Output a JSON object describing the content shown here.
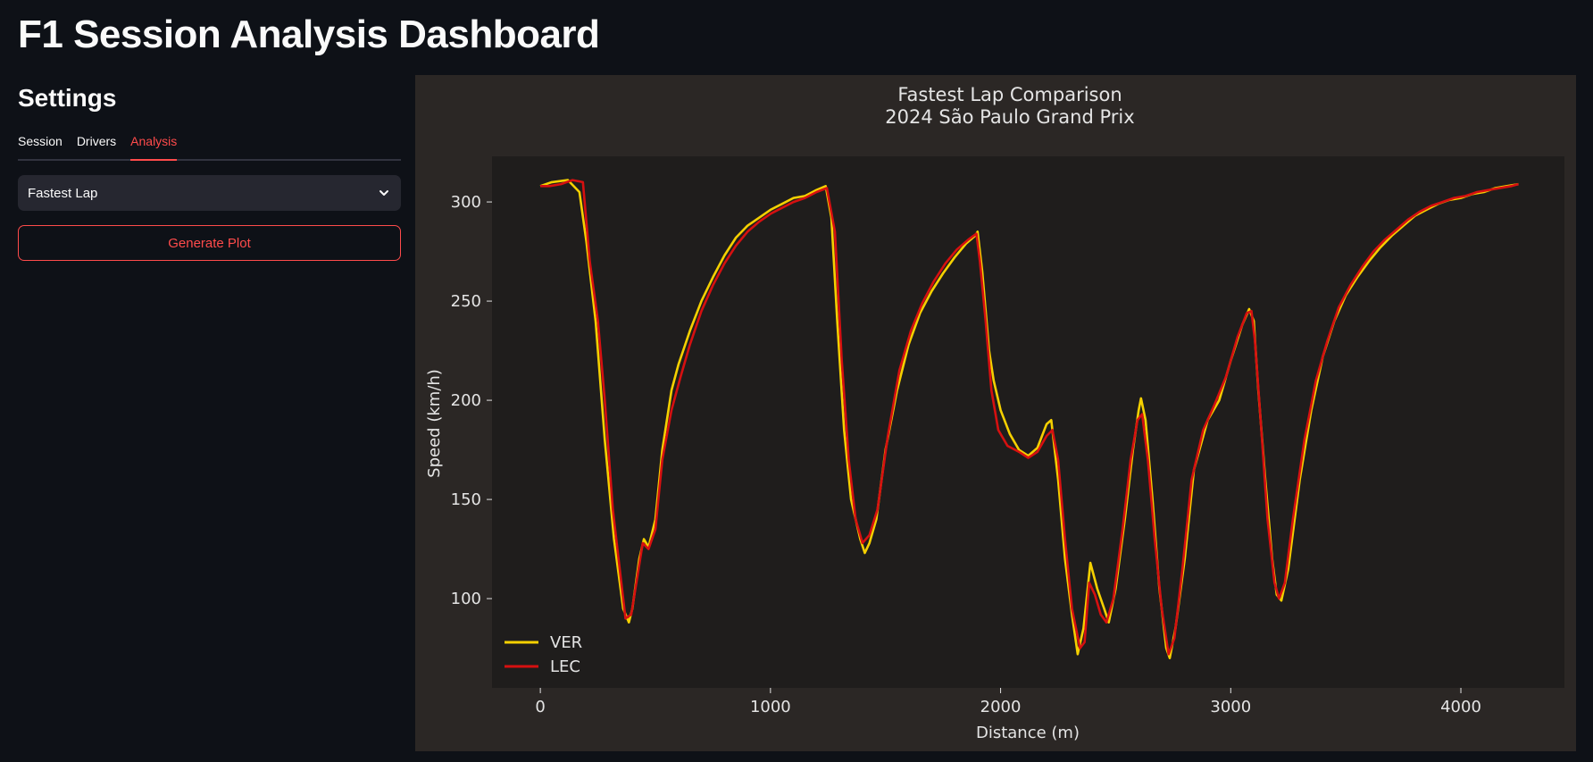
{
  "header": {
    "title": "F1 Session Analysis Dashboard"
  },
  "sidebar": {
    "title": "Settings",
    "tabs": [
      {
        "label": "Session",
        "active": false
      },
      {
        "label": "Drivers",
        "active": false
      },
      {
        "label": "Analysis",
        "active": true
      }
    ],
    "select": {
      "value": "Fastest Lap",
      "icon": "chevron-down-icon"
    },
    "generate_label": "Generate Plot"
  },
  "colors": {
    "accent": "#ff4b4b",
    "background": "#0e1117",
    "panel": "#2b2725",
    "plot_area": "#1f1d1c",
    "ver": "#f5d000",
    "lec": "#d61010"
  },
  "chart_data": {
    "type": "line",
    "title": "Fastest Lap Comparison",
    "subtitle": "2024 São Paulo Grand Prix",
    "xlabel": "Distance (m)",
    "ylabel": "Speed (km/h)",
    "xlim": [
      -210,
      4450
    ],
    "ylim": [
      55,
      323
    ],
    "xticks": [
      0,
      1000,
      2000,
      3000,
      4000
    ],
    "yticks": [
      100,
      150,
      200,
      250,
      300
    ],
    "grid": false,
    "legend": "lower-left",
    "series": [
      {
        "name": "VER",
        "color": "#f5d000",
        "points": [
          [
            0,
            308
          ],
          [
            50,
            310
          ],
          [
            120,
            311
          ],
          [
            170,
            305
          ],
          [
            200,
            280
          ],
          [
            240,
            240
          ],
          [
            280,
            180
          ],
          [
            320,
            130
          ],
          [
            360,
            95
          ],
          [
            385,
            88
          ],
          [
            400,
            95
          ],
          [
            430,
            120
          ],
          [
            450,
            130
          ],
          [
            470,
            126
          ],
          [
            500,
            140
          ],
          [
            530,
            175
          ],
          [
            570,
            205
          ],
          [
            600,
            218
          ],
          [
            650,
            235
          ],
          [
            700,
            250
          ],
          [
            750,
            262
          ],
          [
            800,
            273
          ],
          [
            850,
            282
          ],
          [
            900,
            288
          ],
          [
            950,
            292
          ],
          [
            1000,
            296
          ],
          [
            1050,
            299
          ],
          [
            1100,
            302
          ],
          [
            1150,
            303
          ],
          [
            1200,
            306
          ],
          [
            1240,
            308
          ],
          [
            1265,
            292
          ],
          [
            1290,
            240
          ],
          [
            1320,
            185
          ],
          [
            1350,
            150
          ],
          [
            1390,
            130
          ],
          [
            1410,
            123
          ],
          [
            1430,
            128
          ],
          [
            1460,
            140
          ],
          [
            1500,
            175
          ],
          [
            1550,
            205
          ],
          [
            1600,
            228
          ],
          [
            1650,
            244
          ],
          [
            1700,
            255
          ],
          [
            1750,
            264
          ],
          [
            1800,
            272
          ],
          [
            1850,
            279
          ],
          [
            1890,
            283
          ],
          [
            1900,
            285
          ],
          [
            1920,
            265
          ],
          [
            1950,
            225
          ],
          [
            1970,
            210
          ],
          [
            2000,
            195
          ],
          [
            2040,
            183
          ],
          [
            2080,
            175
          ],
          [
            2120,
            172
          ],
          [
            2160,
            176
          ],
          [
            2200,
            188
          ],
          [
            2220,
            190
          ],
          [
            2250,
            160
          ],
          [
            2280,
            120
          ],
          [
            2310,
            92
          ],
          [
            2335,
            72
          ],
          [
            2360,
            85
          ],
          [
            2390,
            118
          ],
          [
            2420,
            105
          ],
          [
            2450,
            95
          ],
          [
            2470,
            88
          ],
          [
            2500,
            105
          ],
          [
            2540,
            140
          ],
          [
            2575,
            175
          ],
          [
            2600,
            195
          ],
          [
            2610,
            201
          ],
          [
            2630,
            190
          ],
          [
            2660,
            150
          ],
          [
            2690,
            105
          ],
          [
            2720,
            75
          ],
          [
            2735,
            70
          ],
          [
            2760,
            85
          ],
          [
            2800,
            120
          ],
          [
            2840,
            165
          ],
          [
            2900,
            190
          ],
          [
            2950,
            200
          ],
          [
            3000,
            220
          ],
          [
            3050,
            238
          ],
          [
            3080,
            246
          ],
          [
            3100,
            240
          ],
          [
            3120,
            205
          ],
          [
            3150,
            160
          ],
          [
            3180,
            120
          ],
          [
            3200,
            102
          ],
          [
            3220,
            99
          ],
          [
            3250,
            115
          ],
          [
            3300,
            160
          ],
          [
            3350,
            195
          ],
          [
            3400,
            222
          ],
          [
            3450,
            240
          ],
          [
            3500,
            253
          ],
          [
            3550,
            262
          ],
          [
            3600,
            270
          ],
          [
            3650,
            277
          ],
          [
            3700,
            283
          ],
          [
            3750,
            288
          ],
          [
            3800,
            293
          ],
          [
            3850,
            296
          ],
          [
            3900,
            299
          ],
          [
            3950,
            301
          ],
          [
            4000,
            302
          ],
          [
            4050,
            304
          ],
          [
            4100,
            305
          ],
          [
            4150,
            307
          ],
          [
            4200,
            308
          ],
          [
            4250,
            309
          ]
        ]
      },
      {
        "name": "LEC",
        "color": "#d61010",
        "points": [
          [
            0,
            308
          ],
          [
            40,
            308
          ],
          [
            90,
            309
          ],
          [
            140,
            311
          ],
          [
            185,
            310
          ],
          [
            215,
            270
          ],
          [
            250,
            240
          ],
          [
            280,
            200
          ],
          [
            315,
            145
          ],
          [
            345,
            115
          ],
          [
            370,
            90
          ],
          [
            395,
            92
          ],
          [
            420,
            110
          ],
          [
            445,
            128
          ],
          [
            470,
            125
          ],
          [
            500,
            135
          ],
          [
            530,
            170
          ],
          [
            570,
            195
          ],
          [
            610,
            212
          ],
          [
            650,
            228
          ],
          [
            700,
            245
          ],
          [
            750,
            258
          ],
          [
            800,
            269
          ],
          [
            850,
            278
          ],
          [
            900,
            285
          ],
          [
            950,
            290
          ],
          [
            1000,
            294
          ],
          [
            1050,
            297
          ],
          [
            1100,
            300
          ],
          [
            1150,
            302
          ],
          [
            1200,
            305
          ],
          [
            1245,
            307
          ],
          [
            1280,
            285
          ],
          [
            1310,
            220
          ],
          [
            1340,
            170
          ],
          [
            1370,
            140
          ],
          [
            1400,
            128
          ],
          [
            1430,
            132
          ],
          [
            1465,
            145
          ],
          [
            1510,
            182
          ],
          [
            1560,
            215
          ],
          [
            1610,
            235
          ],
          [
            1660,
            249
          ],
          [
            1710,
            260
          ],
          [
            1760,
            269
          ],
          [
            1810,
            276
          ],
          [
            1860,
            281
          ],
          [
            1895,
            284
          ],
          [
            1910,
            270
          ],
          [
            1935,
            240
          ],
          [
            1960,
            205
          ],
          [
            1990,
            185
          ],
          [
            2030,
            177
          ],
          [
            2080,
            174
          ],
          [
            2120,
            171
          ],
          [
            2160,
            174
          ],
          [
            2200,
            182
          ],
          [
            2225,
            185
          ],
          [
            2250,
            170
          ],
          [
            2280,
            130
          ],
          [
            2310,
            95
          ],
          [
            2345,
            75
          ],
          [
            2365,
            78
          ],
          [
            2385,
            108
          ],
          [
            2410,
            102
          ],
          [
            2435,
            92
          ],
          [
            2460,
            88
          ],
          [
            2490,
            100
          ],
          [
            2530,
            135
          ],
          [
            2565,
            170
          ],
          [
            2595,
            190
          ],
          [
            2615,
            193
          ],
          [
            2640,
            170
          ],
          [
            2670,
            130
          ],
          [
            2700,
            95
          ],
          [
            2730,
            72
          ],
          [
            2755,
            80
          ],
          [
            2790,
            115
          ],
          [
            2830,
            160
          ],
          [
            2880,
            185
          ],
          [
            2930,
            198
          ],
          [
            2980,
            212
          ],
          [
            3030,
            232
          ],
          [
            3070,
            244
          ],
          [
            3090,
            245
          ],
          [
            3105,
            230
          ],
          [
            3130,
            190
          ],
          [
            3160,
            140
          ],
          [
            3190,
            108
          ],
          [
            3210,
            100
          ],
          [
            3235,
            108
          ],
          [
            3270,
            140
          ],
          [
            3320,
            180
          ],
          [
            3370,
            210
          ],
          [
            3420,
            230
          ],
          [
            3470,
            247
          ],
          [
            3520,
            258
          ],
          [
            3570,
            267
          ],
          [
            3620,
            275
          ],
          [
            3670,
            281
          ],
          [
            3720,
            286
          ],
          [
            3770,
            291
          ],
          [
            3820,
            295
          ],
          [
            3870,
            298
          ],
          [
            3920,
            300
          ],
          [
            3970,
            302
          ],
          [
            4020,
            303
          ],
          [
            4070,
            305
          ],
          [
            4120,
            306
          ],
          [
            4170,
            307
          ],
          [
            4220,
            308
          ],
          [
            4250,
            309
          ]
        ]
      }
    ]
  }
}
